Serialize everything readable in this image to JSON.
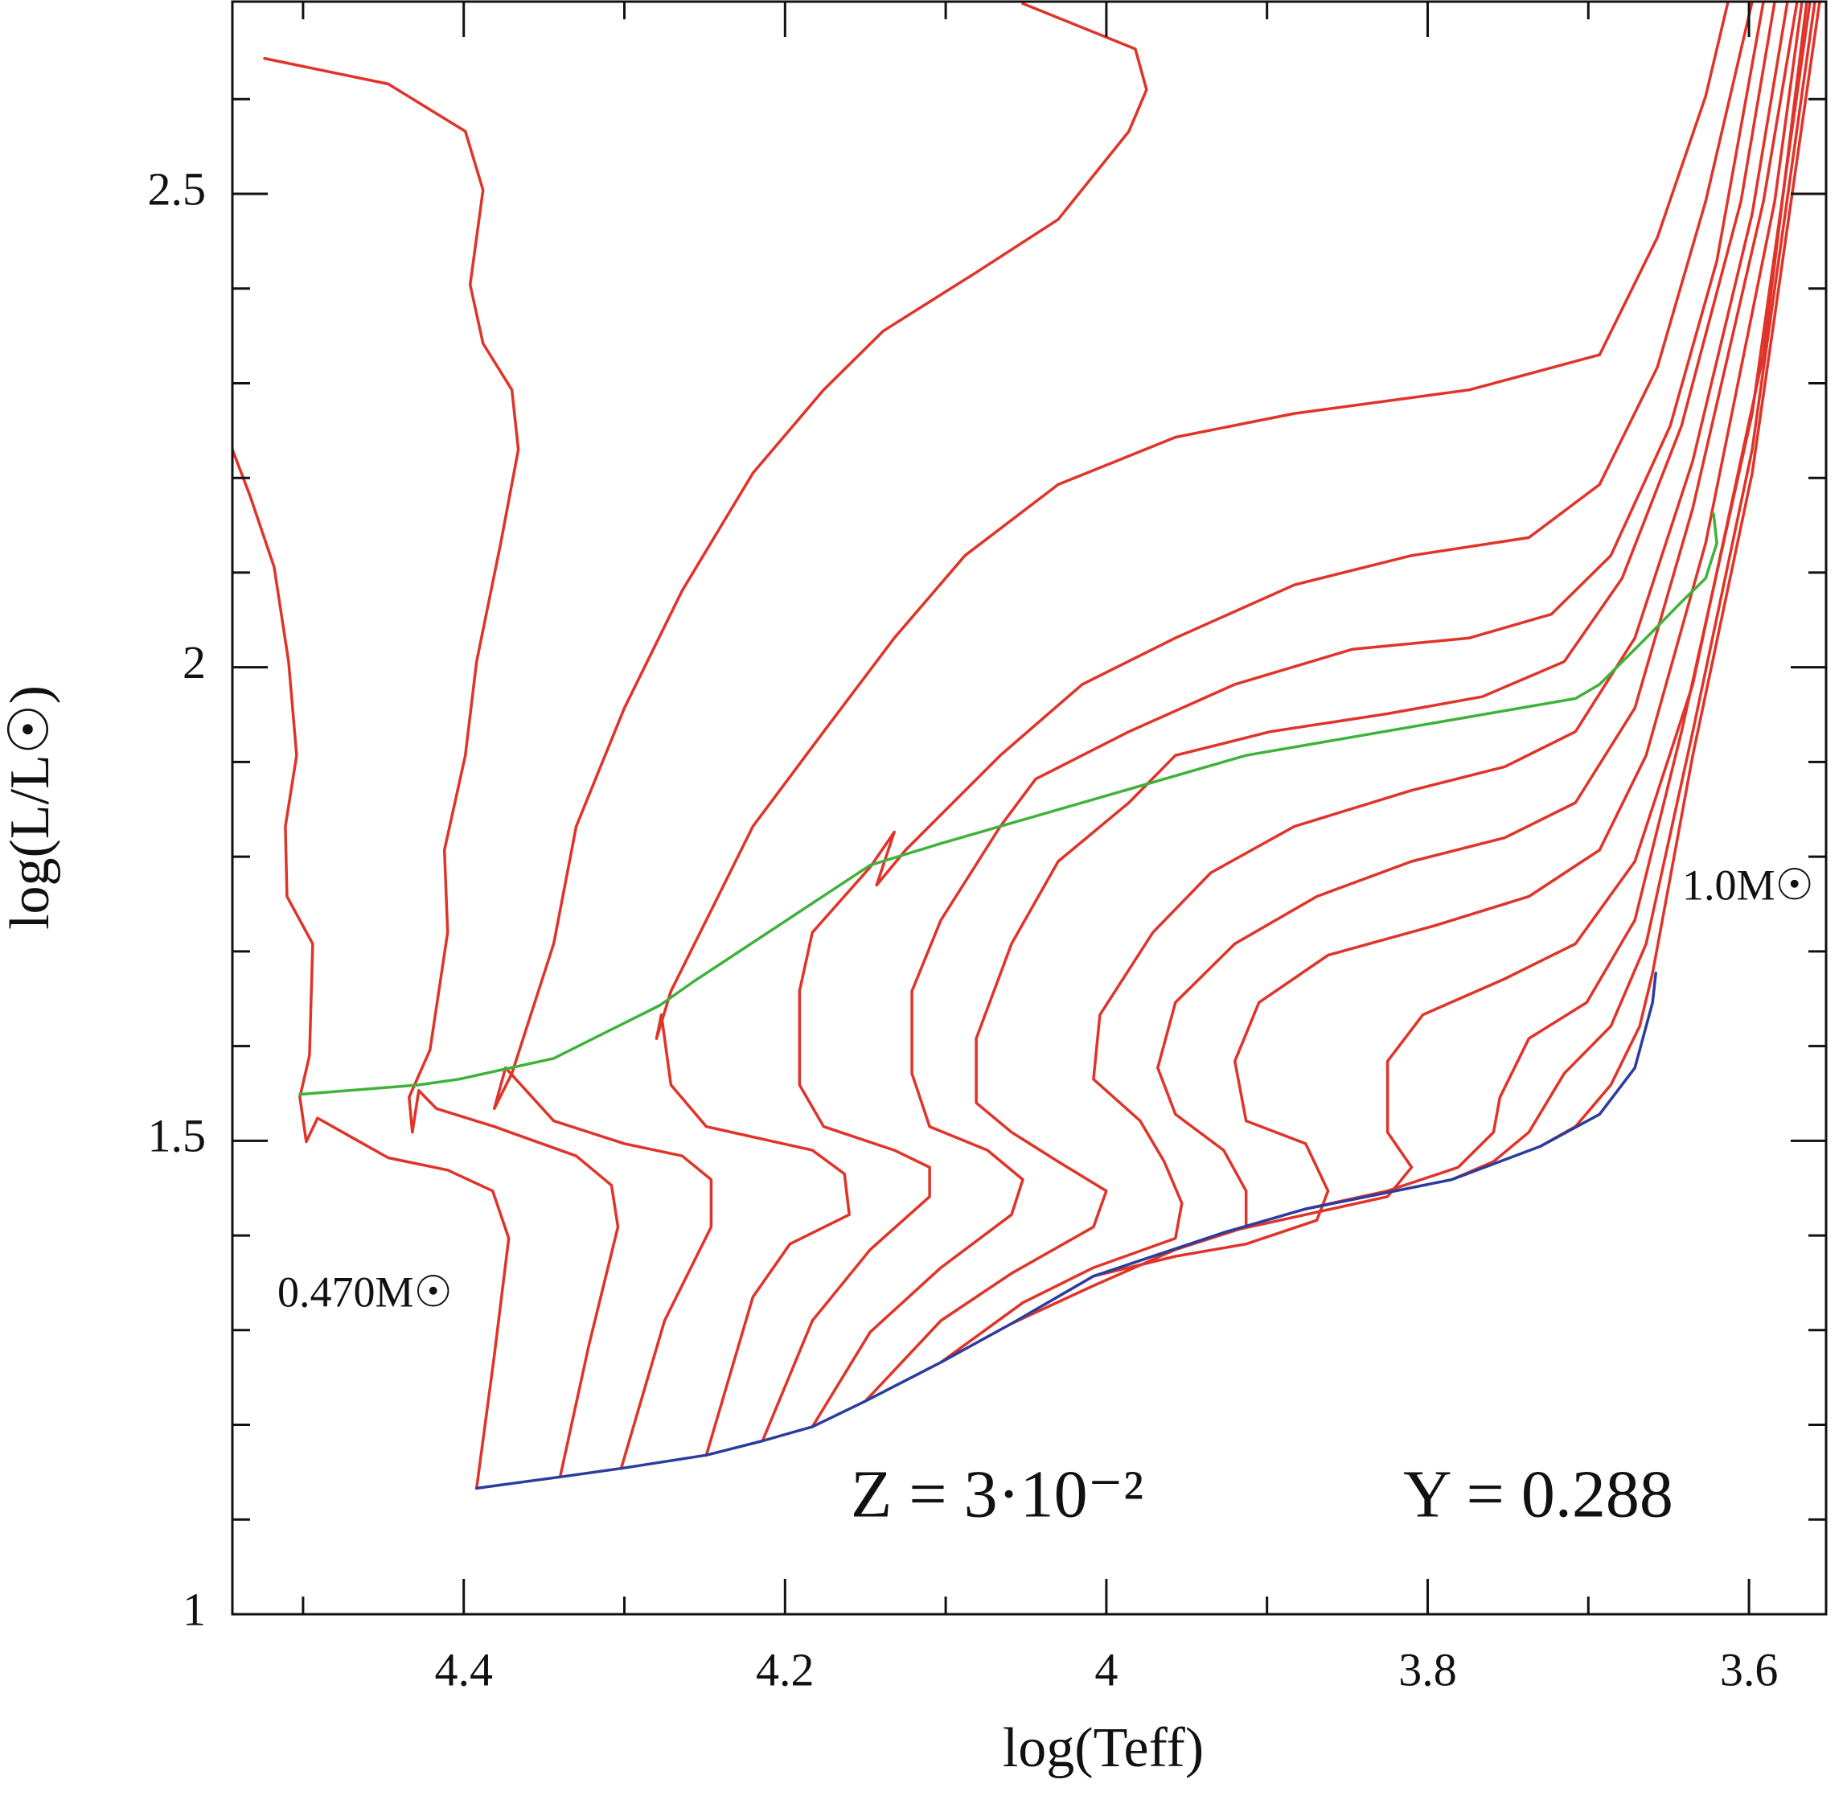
{
  "chart_data": {
    "type": "line",
    "x_label": "log(Teff)",
    "y_label": "log(L/L☉)",
    "xlim": [
      4.544,
      3.552
    ],
    "ylim": [
      1,
      2.703
    ],
    "xticks": [
      4.4,
      4.2,
      4,
      3.8,
      3.6
    ],
    "xminorticks": [
      4.5,
      4.3,
      4.1,
      3.9,
      3.7
    ],
    "yticks": [
      1,
      1.5,
      2,
      2.5
    ],
    "yminorticks": [
      1.1,
      1.2,
      1.3,
      1.4,
      1.6,
      1.7,
      1.8,
      1.9,
      2.1,
      2.2,
      2.3,
      2.4,
      2.6
    ],
    "annotations": [
      "0.470M☉",
      "1.0M☉"
    ],
    "info": [
      "Z = 3·10⁻²",
      "Y = 0.288"
    ],
    "series": [
      {
        "color": "#e03329",
        "x": [
          4.392,
          4.381,
          4.372,
          4.382,
          4.41,
          4.447,
          4.469,
          4.491,
          4.498,
          4.502,
          4.496,
          4.494,
          4.51,
          4.511,
          4.504,
          4.509,
          4.518,
          4.533,
          4.544
        ],
        "y": [
          1.133,
          1.273,
          1.397,
          1.447,
          1.469,
          1.482,
          1.503,
          1.524,
          1.499,
          1.546,
          1.59,
          1.708,
          1.758,
          1.832,
          1.907,
          2.006,
          2.106,
          2.181,
          2.23
        ]
      },
      {
        "color": "#e03329",
        "x": [
          4.34,
          4.322,
          4.304,
          4.308,
          4.33,
          4.381,
          4.417,
          4.428,
          4.432,
          4.434,
          4.421,
          4.41,
          4.412,
          4.399,
          4.392,
          4.377,
          4.366,
          4.37,
          4.388,
          4.396,
          4.388,
          4.399,
          4.447,
          4.524
        ],
        "y": [
          1.145,
          1.285,
          1.409,
          1.453,
          1.484,
          1.515,
          1.534,
          1.553,
          1.509,
          1.546,
          1.596,
          1.72,
          1.807,
          1.907,
          2.006,
          2.131,
          2.23,
          2.293,
          2.342,
          2.404,
          2.504,
          2.566,
          2.616,
          2.643
        ]
      },
      {
        "color": "#e03329",
        "x": [
          4.302,
          4.275,
          4.246,
          4.246,
          4.264,
          4.3,
          4.344,
          4.374,
          4.381,
          4.37,
          4.363,
          4.344,
          4.33,
          4.3,
          4.264,
          4.22,
          4.176,
          4.139,
          4.081,
          4.03,
          3.986,
          3.975,
          3.982,
          4.052
        ],
        "y": [
          1.154,
          1.31,
          1.409,
          1.459,
          1.484,
          1.497,
          1.521,
          1.577,
          1.534,
          1.571,
          1.608,
          1.708,
          1.832,
          1.957,
          2.081,
          2.205,
          2.293,
          2.355,
          2.417,
          2.473,
          2.566,
          2.61,
          2.653,
          2.701
        ]
      },
      {
        "color": "#e03329",
        "x": [
          4.249,
          4.22,
          4.197,
          4.16,
          4.163,
          4.183,
          4.249,
          4.271,
          4.277,
          4.28,
          4.271,
          4.249,
          4.22,
          4.176,
          4.132,
          4.088,
          4.03,
          3.957,
          3.883,
          3.774,
          3.693,
          3.657,
          3.627,
          3.613
        ],
        "y": [
          1.168,
          1.335,
          1.391,
          1.422,
          1.465,
          1.49,
          1.515,
          1.559,
          1.633,
          1.608,
          1.658,
          1.733,
          1.832,
          1.932,
          2.031,
          2.118,
          2.193,
          2.243,
          2.268,
          2.293,
          2.33,
          2.454,
          2.603,
          2.703
        ]
      },
      {
        "color": "#e03329",
        "x": [
          4.214,
          4.183,
          4.147,
          4.11,
          4.11,
          4.132,
          4.176,
          4.191,
          4.191,
          4.183,
          4.147,
          4.132,
          4.143,
          4.125,
          4.066,
          4.015,
          3.957,
          3.883,
          3.81,
          3.737,
          3.693,
          3.657,
          3.627,
          3.598
        ],
        "y": [
          1.183,
          1.31,
          1.385,
          1.441,
          1.472,
          1.49,
          1.515,
          1.559,
          1.658,
          1.72,
          1.789,
          1.826,
          1.77,
          1.807,
          1.907,
          1.982,
          2.031,
          2.087,
          2.118,
          2.137,
          2.193,
          2.317,
          2.492,
          2.703
        ]
      },
      {
        "color": "#e03329",
        "x": [
          4.183,
          4.147,
          4.103,
          4.059,
          4.052,
          4.074,
          4.11,
          4.121,
          4.121,
          4.103,
          4.066,
          4.044,
          3.986,
          3.92,
          3.847,
          3.774,
          3.723,
          3.686,
          3.649,
          3.62,
          3.591
        ],
        "y": [
          1.198,
          1.298,
          1.366,
          1.422,
          1.459,
          1.49,
          1.515,
          1.571,
          1.658,
          1.733,
          1.832,
          1.882,
          1.932,
          1.982,
          2.019,
          2.031,
          2.056,
          2.118,
          2.255,
          2.429,
          2.703
        ]
      },
      {
        "color": "#e03329",
        "x": [
          4.15,
          4.103,
          4.059,
          4.008,
          4.0,
          4.03,
          4.059,
          4.081,
          4.081,
          4.059,
          4.03,
          3.986,
          3.957,
          3.898,
          3.825,
          3.766,
          3.715,
          3.679,
          3.642,
          3.605,
          3.584
        ],
        "y": [
          1.225,
          1.31,
          1.36,
          1.409,
          1.447,
          1.478,
          1.509,
          1.54,
          1.608,
          1.708,
          1.795,
          1.857,
          1.907,
          1.932,
          1.951,
          1.969,
          2.006,
          2.094,
          2.255,
          2.492,
          2.703
        ]
      },
      {
        "color": "#e03329",
        "x": [
          4.103,
          4.052,
          4.008,
          3.957,
          3.953,
          3.964,
          3.979,
          4.008,
          4.004,
          3.971,
          3.935,
          3.883,
          3.81,
          3.752,
          3.708,
          3.671,
          3.635,
          3.598,
          3.576
        ],
        "y": [
          1.266,
          1.329,
          1.366,
          1.397,
          1.434,
          1.478,
          1.521,
          1.565,
          1.633,
          1.72,
          1.783,
          1.832,
          1.87,
          1.895,
          1.932,
          2.031,
          2.218,
          2.479,
          2.703
        ]
      },
      {
        "color": "#e03329",
        "x": [
          4.059,
          4.008,
          3.957,
          3.913,
          3.913,
          3.927,
          3.957,
          3.968,
          3.957,
          3.92,
          3.869,
          3.81,
          3.752,
          3.708,
          3.671,
          3.635,
          3.591,
          3.57
        ],
        "y": [
          1.307,
          1.347,
          1.385,
          1.409,
          1.447,
          1.49,
          1.528,
          1.577,
          1.646,
          1.708,
          1.758,
          1.795,
          1.82,
          1.857,
          1.957,
          2.168,
          2.492,
          2.703
        ]
      },
      {
        "color": "#e03329",
        "x": [
          4.008,
          3.957,
          3.913,
          3.869,
          3.862,
          3.876,
          3.913,
          3.92,
          3.905,
          3.862,
          3.796,
          3.737,
          3.693,
          3.664,
          3.627,
          3.584,
          3.567
        ],
        "y": [
          1.357,
          1.378,
          1.391,
          1.416,
          1.447,
          1.497,
          1.521,
          1.584,
          1.646,
          1.696,
          1.727,
          1.758,
          1.807,
          1.907,
          2.131,
          2.492,
          2.703
        ]
      },
      {
        "color": "#e03329",
        "x": [
          3.927,
          3.876,
          3.825,
          3.81,
          3.825,
          3.825,
          3.803,
          3.752,
          3.708,
          3.671,
          3.635,
          3.591,
          3.564
        ],
        "y": [
          1.403,
          1.422,
          1.441,
          1.472,
          1.509,
          1.584,
          1.633,
          1.671,
          1.708,
          1.795,
          1.982,
          2.33,
          2.703
        ]
      },
      {
        "color": "#e03329",
        "x": [
          3.876,
          3.825,
          3.781,
          3.759,
          3.755,
          3.737,
          3.701,
          3.671,
          3.642,
          3.598,
          3.562
        ],
        "y": [
          1.428,
          1.447,
          1.472,
          1.509,
          1.546,
          1.608,
          1.646,
          1.733,
          1.932,
          2.268,
          2.703
        ]
      },
      {
        "color": "#e03329",
        "x": [
          3.785,
          3.759,
          3.737,
          3.715,
          3.686,
          3.664,
          3.635,
          3.598,
          3.559
        ],
        "y": [
          1.459,
          1.478,
          1.509,
          1.571,
          1.621,
          1.708,
          1.932,
          2.23,
          2.703
        ]
      },
      {
        "color": "#e03329",
        "x": [
          3.73,
          3.708,
          3.686,
          3.668,
          3.66,
          3.635,
          3.598,
          3.556
        ],
        "y": [
          1.494,
          1.515,
          1.559,
          1.621,
          1.677,
          1.907,
          2.205,
          2.703
        ]
      },
      {
        "color": "#2b3d9c",
        "x": [
          4.392,
          4.34,
          4.302,
          4.249,
          4.214,
          4.183,
          4.15,
          4.103,
          4.059,
          4.008,
          3.927,
          3.876,
          3.785,
          3.73,
          3.693,
          3.671,
          3.66,
          3.658
        ],
        "y": [
          1.133,
          1.145,
          1.154,
          1.168,
          1.183,
          1.198,
          1.225,
          1.266,
          1.307,
          1.357,
          1.403,
          1.428,
          1.459,
          1.494,
          1.528,
          1.577,
          1.646,
          1.677
        ]
      },
      {
        "color": "#3fb23a",
        "x": [
          4.502,
          4.428,
          4.403,
          4.344,
          4.278,
          4.257,
          4.147,
          4.103,
          3.913,
          3.708,
          3.693,
          3.664,
          3.642,
          3.627,
          3.62,
          3.622
        ],
        "y": [
          1.549,
          1.559,
          1.565,
          1.587,
          1.643,
          1.668,
          1.791,
          1.814,
          1.907,
          1.967,
          1.982,
          2.031,
          2.069,
          2.094,
          2.131,
          2.162
        ]
      }
    ]
  }
}
